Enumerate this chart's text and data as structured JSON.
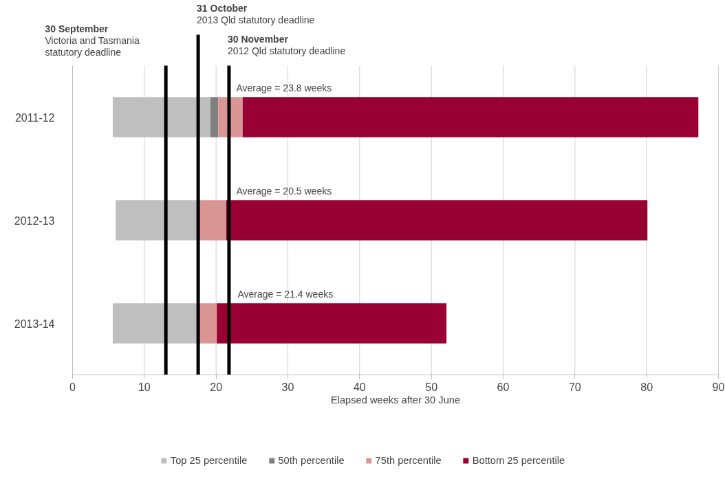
{
  "chart_data": {
    "type": "bar",
    "orientation": "horizontal",
    "xlabel": "Elapsed weeks after 30 June",
    "categories": [
      "2011-12",
      "2012-13",
      "2013-14"
    ],
    "series": [
      {
        "name": "Top 25 percentile",
        "color": "#bfbfbf",
        "base": [
          5.6,
          6.0,
          5.6
        ],
        "values": [
          13.6,
          11.4,
          11.8
        ]
      },
      {
        "name": "50th percentile",
        "color": "#808080",
        "base": [
          19.2,
          null,
          null
        ],
        "values": [
          1.1,
          null,
          null
        ]
      },
      {
        "name": "75th percentile",
        "color": "#da9694",
        "base": [
          20.3,
          17.4,
          17.4
        ],
        "values": [
          3.4,
          4.0,
          2.7
        ]
      },
      {
        "name": "Bottom 25 percentile",
        "color": "#990033",
        "base": [
          23.7,
          21.4,
          20.1
        ],
        "values": [
          63.5,
          58.7,
          32.0
        ]
      }
    ],
    "xlim": [
      0,
      90
    ],
    "xticks": [
      0,
      10,
      20,
      30,
      40,
      50,
      60,
      70,
      80,
      90
    ],
    "grid": "x",
    "legend": "bottom",
    "ref_lines": [
      {
        "axis": "x",
        "value": 13.0,
        "label": "30 September\nVictoria and Tasmania\nstatutory deadline",
        "color": "#000000"
      },
      {
        "axis": "x",
        "value": 17.5,
        "label": "31 October\n2013 Qld statutory deadline",
        "color": "#000000"
      },
      {
        "axis": "x",
        "value": 21.8,
        "label": "30 November\n2012 Qld statutory deadline",
        "color": "#000000"
      }
    ],
    "annotations": [
      "Average  = 23.8 weeks",
      "Average = 20.5 weeks",
      "Average = 21.4 weeks"
    ]
  }
}
